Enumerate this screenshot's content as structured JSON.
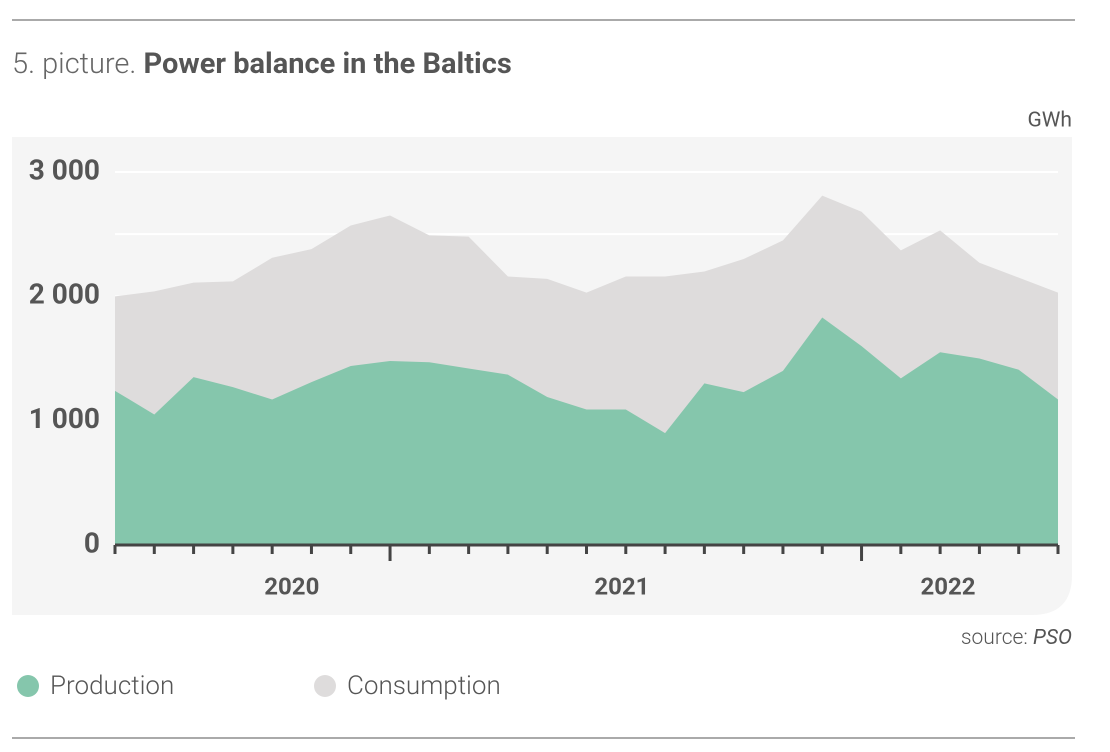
{
  "chart_data": {
    "type": "area",
    "title_prefix": "5. picture.",
    "title": "Power balance in the Baltics",
    "y_unit": "GWh",
    "source_prefix": "source:",
    "source": "PSO",
    "x": [
      0,
      1,
      2,
      3,
      4,
      5,
      6,
      7,
      8,
      9,
      10,
      11,
      12,
      13,
      14,
      15,
      16,
      17,
      18,
      19,
      20,
      21,
      22,
      23,
      24
    ],
    "xlim": [
      0,
      24
    ],
    "xticks": [
      {
        "value": 4.5,
        "label": "2020"
      },
      {
        "value": 12.9,
        "label": "2021"
      },
      {
        "value": 21.2,
        "label": "2022"
      }
    ],
    "major_ticks": [
      7,
      19
    ],
    "series": [
      {
        "name": "Consumption",
        "color": "#dedcdc",
        "values": [
          2000,
          2040,
          2110,
          2120,
          2310,
          2380,
          2570,
          2650,
          2490,
          2480,
          2160,
          2140,
          2030,
          2160,
          2160,
          2200,
          2300,
          2450,
          2810,
          2680,
          2370,
          2530,
          2270,
          2150,
          2030
        ]
      },
      {
        "name": "Production",
        "color": "#85c6ac",
        "values": [
          1240,
          1050,
          1350,
          1270,
          1170,
          1310,
          1440,
          1480,
          1470,
          1420,
          1370,
          1190,
          1090,
          1090,
          900,
          1300,
          1230,
          1400,
          1830,
          1600,
          1340,
          1550,
          1500,
          1410,
          1170
        ]
      }
    ],
    "legend_order": [
      1,
      0
    ],
    "ylim": [
      0,
      3000
    ],
    "yticks": [
      {
        "value": 0,
        "label": "0"
      },
      {
        "value": 1000,
        "label": "1 000"
      },
      {
        "value": 2000,
        "label": "2 000"
      },
      {
        "value": 3000,
        "label": "3 000"
      }
    ],
    "ygrid": [
      500,
      1000,
      1500,
      2000,
      2500,
      3000
    ],
    "grid": true
  }
}
